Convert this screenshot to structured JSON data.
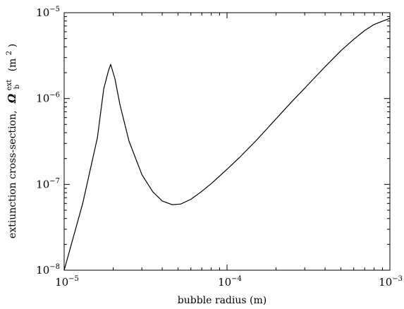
{
  "chart_data": {
    "type": "line",
    "title": "",
    "xlabel": "bubble radius (m)",
    "ylabel": {
      "text": "extiunction cross-section,",
      "symbol": "Ω",
      "subscript": "b",
      "superscript": "ext",
      "unit": "(m",
      "unit_power": "2",
      "unit_close": ")"
    },
    "x_scale": "log",
    "y_scale": "log",
    "xlim": [
      1e-05,
      0.001
    ],
    "ylim": [
      1e-08,
      1e-05
    ],
    "grid": false,
    "x_ticks": [
      {
        "value": 1e-05,
        "base": "10",
        "exp": "−5"
      },
      {
        "value": 0.0001,
        "base": "10",
        "exp": "−4"
      },
      {
        "value": 0.001,
        "base": "10",
        "exp": "−3"
      }
    ],
    "y_ticks": [
      {
        "value": 1e-08,
        "base": "10",
        "exp": "−8"
      },
      {
        "value": 1e-07,
        "base": "10",
        "exp": "−7"
      },
      {
        "value": 1e-06,
        "base": "10",
        "exp": "−6"
      },
      {
        "value": 1e-05,
        "base": "10",
        "exp": "−5"
      }
    ],
    "series": [
      {
        "x": [
          1e-05,
          1.3e-05,
          1.6e-05,
          1.75e-05,
          1.87e-05,
          1.93e-05,
          2.05e-05,
          2.2e-05,
          2.5e-05,
          3e-05,
          3.5e-05,
          4e-05,
          4.6e-05,
          5.2e-05,
          6e-05,
          7e-05,
          8e-05,
          0.0001,
          0.00012,
          0.00015,
          0.0002,
          0.00025,
          0.0003,
          0.0004,
          0.0005,
          0.0006,
          0.0007,
          0.0008,
          0.001
        ],
        "y": [
          1e-08,
          6e-08,
          3.5e-07,
          1.3e-06,
          2.1e-06,
          2.5e-06,
          1.7e-06,
          8.5e-07,
          3.2e-07,
          1.3e-07,
          8.2e-08,
          6.4e-08,
          5.8e-08,
          5.9e-08,
          6.7e-08,
          8.3e-08,
          1.02e-07,
          1.5e-07,
          2.08e-07,
          3.2e-07,
          5.8e-07,
          9.2e-07,
          1.32e-06,
          2.35e-06,
          3.6e-06,
          4.9e-06,
          6.2e-06,
          7.3e-06,
          8.6e-06
        ]
      }
    ]
  }
}
